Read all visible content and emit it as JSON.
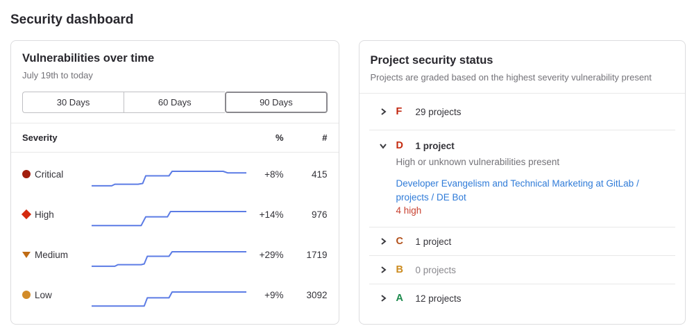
{
  "page_title": "Security dashboard",
  "vuln_panel": {
    "title": "Vulnerabilities over time",
    "subtitle": "July 19th to today",
    "range_buttons": [
      {
        "label": "30 Days"
      },
      {
        "label": "60 Days"
      },
      {
        "label": "90 Days"
      }
    ],
    "selected_range": "90 Days",
    "header": {
      "severity": "Severity",
      "percent": "%",
      "count": "#"
    },
    "rows": [
      {
        "severity": "Critical",
        "icon": "critical-severity-icon",
        "color": "#a21e0d",
        "percent": "+8%",
        "count": "415"
      },
      {
        "severity": "High",
        "icon": "high-severity-icon",
        "color": "#d42a0e",
        "percent": "+14%",
        "count": "976"
      },
      {
        "severity": "Medium",
        "icon": "medium-severity-icon",
        "color": "#bf6b14",
        "percent": "+29%",
        "count": "1719"
      },
      {
        "severity": "Low",
        "icon": "low-severity-icon",
        "color": "#d28b28",
        "percent": "+9%",
        "count": "3092"
      }
    ]
  },
  "chart_data": {
    "type": "line",
    "title": "Vulnerabilities over time",
    "xlabel": "July 19th to today (90 days)",
    "line_color": "#5c7ce5",
    "legend": [
      "Critical",
      "High",
      "Medium",
      "Low"
    ],
    "series": [
      {
        "name": "Critical",
        "change_percent": "+8%",
        "current_count": 415,
        "points": [
          [
            0,
            84
          ],
          [
            13,
            84
          ],
          [
            15,
            78
          ],
          [
            30,
            78
          ],
          [
            33,
            75
          ],
          [
            35,
            46
          ],
          [
            50,
            46
          ],
          [
            52,
            29
          ],
          [
            85,
            29
          ],
          [
            88,
            35
          ],
          [
            100,
            35
          ]
        ]
      },
      {
        "name": "High",
        "change_percent": "+14%",
        "current_count": 976,
        "points": [
          [
            0,
            82
          ],
          [
            32,
            82
          ],
          [
            35,
            49
          ],
          [
            49,
            49
          ],
          [
            51,
            29
          ],
          [
            100,
            29
          ]
        ]
      },
      {
        "name": "Medium",
        "change_percent": "+29%",
        "current_count": 1719,
        "points": [
          [
            0,
            84
          ],
          [
            15,
            84
          ],
          [
            17,
            78
          ],
          [
            32,
            78
          ],
          [
            34,
            75
          ],
          [
            36,
            46
          ],
          [
            50,
            46
          ],
          [
            52,
            29
          ],
          [
            100,
            29
          ]
        ]
      },
      {
        "name": "Low",
        "change_percent": "+9%",
        "current_count": 3092,
        "points": [
          [
            0,
            82
          ],
          [
            34,
            82
          ],
          [
            36,
            51
          ],
          [
            50,
            51
          ],
          [
            52,
            29
          ],
          [
            100,
            29
          ]
        ]
      }
    ]
  },
  "status_panel": {
    "title": "Project security status",
    "subtitle": "Projects are graded based on the highest severity vulnerability present",
    "grades": [
      {
        "letter": "F",
        "color": "#c0250e",
        "count_text": "29 projects"
      },
      {
        "letter": "D",
        "color": "#c52c10",
        "count_text": "1 project",
        "description": "High or unknown vulnerabilities present",
        "project_link": "Developer Evangelism and Technical Marketing at GitLab / projects / DE Bot",
        "finding_text": "4 high",
        "finding_color": "#c84130"
      },
      {
        "letter": "C",
        "color": "#b2501a",
        "count_text": "1 project"
      },
      {
        "letter": "B",
        "color": "#cc8b1f",
        "count_text": "0 projects"
      },
      {
        "letter": "A",
        "color": "#1b8a4c",
        "count_text": "12 projects"
      }
    ]
  }
}
